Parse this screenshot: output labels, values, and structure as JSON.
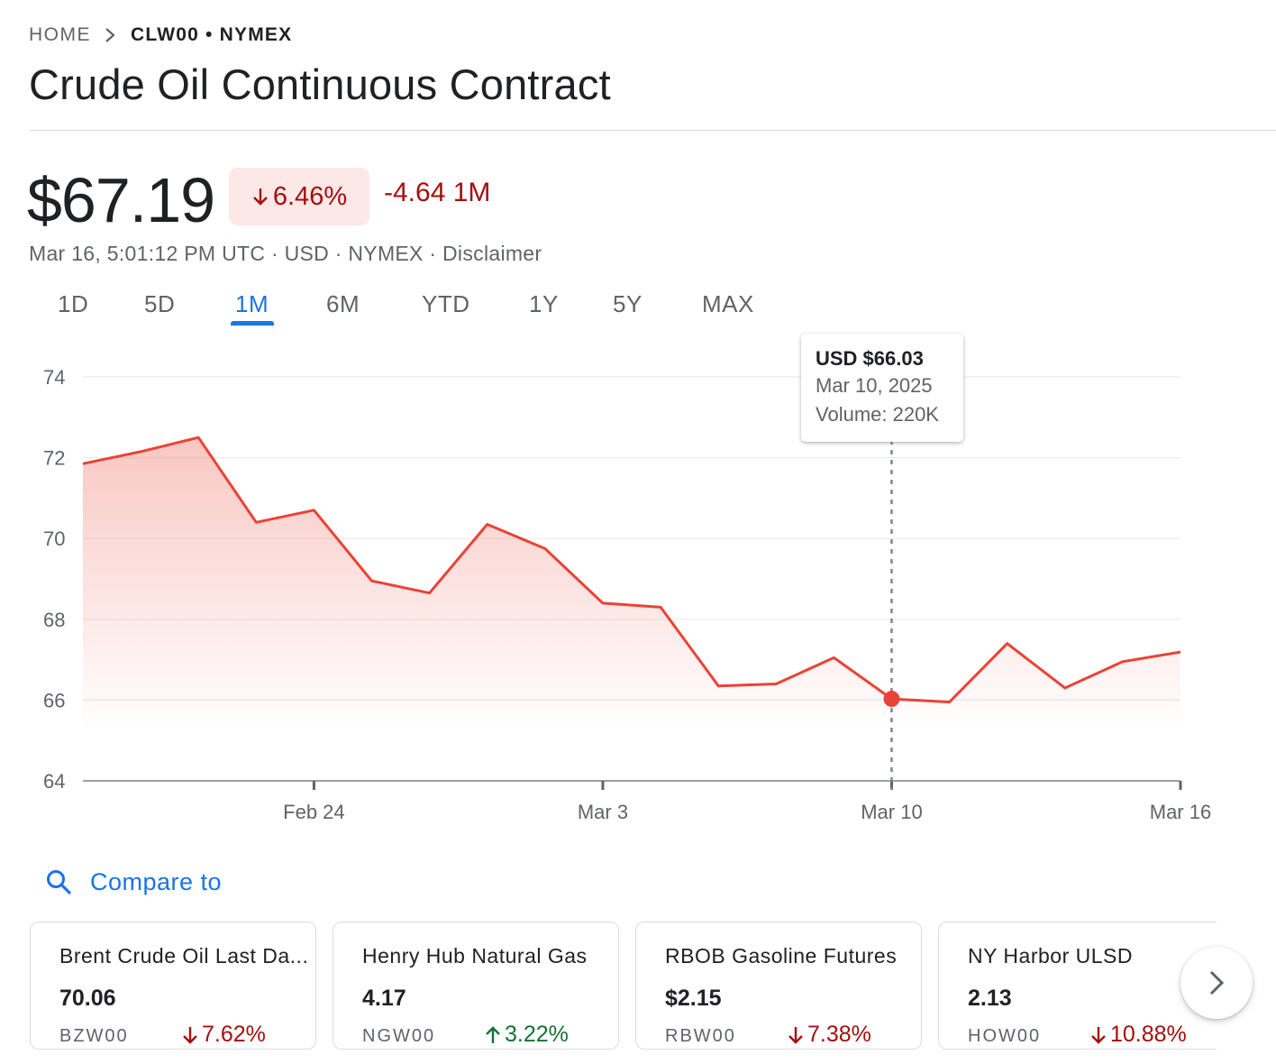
{
  "breadcrumb": {
    "home": "HOME",
    "ticker": "CLW00 • NYMEX"
  },
  "title": "Crude Oil Continuous Contract",
  "quote": {
    "price": "$67.19",
    "change_pct": "6.46%",
    "change_abs": "-4.64 1M",
    "direction": "down",
    "meta": "Mar 16, 5:01:12 PM UTC · USD · NYMEX · Disclaimer"
  },
  "tabs": [
    {
      "label": "1D"
    },
    {
      "label": "5D"
    },
    {
      "label": "1M",
      "active": true
    },
    {
      "label": "6M"
    },
    {
      "label": "YTD"
    },
    {
      "label": "1Y"
    },
    {
      "label": "5Y"
    },
    {
      "label": "MAX"
    }
  ],
  "tooltip": {
    "price": "USD $66.03",
    "date": "Mar 10, 2025",
    "volume": "Volume: 220K"
  },
  "chart_data": {
    "type": "area",
    "x": [
      "Feb 18",
      "Feb 19",
      "Feb 20",
      "Feb 21",
      "Feb 24",
      "Feb 25",
      "Feb 26",
      "Feb 27",
      "Feb 28",
      "Mar 3",
      "Mar 4",
      "Mar 5",
      "Mar 6",
      "Mar 7",
      "Mar 10",
      "Mar 11",
      "Mar 12",
      "Mar 13",
      "Mar 14",
      "Mar 16"
    ],
    "values": [
      71.85,
      72.15,
      72.5,
      70.4,
      70.7,
      68.95,
      68.65,
      70.35,
      69.75,
      68.4,
      68.3,
      66.35,
      66.4,
      67.05,
      66.03,
      65.95,
      67.4,
      66.3,
      66.95,
      67.19
    ],
    "yticks": [
      74,
      72,
      70,
      68,
      66,
      64
    ],
    "ylim": [
      64,
      74
    ],
    "xticks": [
      {
        "label": "Feb 24",
        "index": 4
      },
      {
        "label": "Mar 3",
        "index": 9
      },
      {
        "label": "Mar 10",
        "index": 14
      },
      {
        "label": "Mar 16",
        "index": 19
      }
    ],
    "highlight_index": 14,
    "grid": true,
    "color": "#ea4335"
  },
  "compare": {
    "label": "Compare to"
  },
  "cards": [
    {
      "name": "Brent Crude Oil Last Da...",
      "price": "70.06",
      "ticker": "BZW00",
      "change": "7.62%",
      "dir": "down"
    },
    {
      "name": "Henry Hub Natural Gas",
      "price": "4.17",
      "ticker": "NGW00",
      "change": "3.22%",
      "dir": "up"
    },
    {
      "name": "RBOB Gasoline Futures",
      "price": "$2.15",
      "ticker": "RBW00",
      "change": "7.38%",
      "dir": "down"
    },
    {
      "name": "NY Harbor ULSD",
      "price": "2.13",
      "ticker": "HOW00",
      "change": "10.88%",
      "dir": "down"
    }
  ],
  "colors": {
    "accent": "#1a73e8",
    "down": "#a50e0e",
    "up": "#137333",
    "line": "#ea4335"
  }
}
